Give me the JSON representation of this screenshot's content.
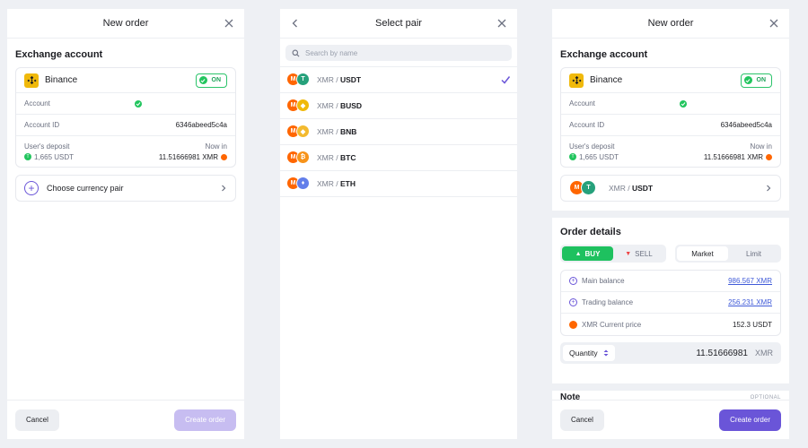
{
  "panel1": {
    "title": "New order",
    "section_title": "Exchange account",
    "account": {
      "exchange_name": "Binance",
      "toggle_label": "ON",
      "account_label": "Account",
      "account_id_label": "Account ID",
      "account_id": "6346abeed5c4a",
      "deposit_label": "User's deposit",
      "deposit_value": "1,665 USDT",
      "now_in_label": "Now in",
      "now_in_value": "11.51666981 XMR"
    },
    "choose_pair_label": "Choose currency pair",
    "footer": {
      "cancel_label": "Cancel",
      "create_label": "Create order"
    }
  },
  "panel2": {
    "title": "Select pair",
    "search_placeholder": "Search by name",
    "pairs": [
      {
        "base": "XMR",
        "sep": " / ",
        "quote": "USDT",
        "selected": true,
        "icon": "tether-icon",
        "color": "#26a17b"
      },
      {
        "base": "XMR",
        "sep": " / ",
        "quote": "BUSD",
        "selected": false,
        "icon": "busd-icon",
        "color": "#f0b90b"
      },
      {
        "base": "XMR",
        "sep": " / ",
        "quote": "BNB",
        "selected": false,
        "icon": "bnb-icon",
        "color": "#f3ba2f"
      },
      {
        "base": "XMR",
        "sep": " / ",
        "quote": "BTC",
        "selected": false,
        "icon": "bitcoin-icon",
        "color": "#f7931a"
      },
      {
        "base": "XMR",
        "sep": " / ",
        "quote": "ETH",
        "selected": false,
        "icon": "ethereum-icon",
        "color": "#627eea"
      }
    ]
  },
  "panel3": {
    "title": "New order",
    "section_title": "Exchange account",
    "account": {
      "exchange_name": "Binance",
      "toggle_label": "ON",
      "account_label": "Account",
      "account_id_label": "Account ID",
      "account_id": "6346abeed5c4a",
      "deposit_label": "User's deposit",
      "deposit_value": "1,665 USDT",
      "now_in_label": "Now in",
      "now_in_value": "11.51666981 XMR"
    },
    "pair": {
      "base": "XMR",
      "sep": " / ",
      "quote": "USDT"
    },
    "order_details_title": "Order details",
    "buy_label": "BUY",
    "sell_label": "SELL",
    "market_label": "Market",
    "limit_label": "Limit",
    "main_balance_label": "Main balance",
    "main_balance_value": "986.567 XMR",
    "trading_balance_label": "Trading balance",
    "trading_balance_value": "256.231 XMR",
    "current_price_label": "XMR Current price",
    "current_price_value": "152.3 USDT",
    "quantity_label": "Quantity",
    "quantity_value": "11.51666981",
    "quantity_unit": "XMR",
    "note_label": "Note",
    "note_optional": "OPTIONAL",
    "footer": {
      "cancel_label": "Cancel",
      "create_label": "Create order"
    }
  },
  "colors": {
    "accent": "#6a55d8",
    "buy": "#1ec15f",
    "sell": "#ef4444",
    "binance": "#f0b90b",
    "monero": "#ff6600"
  }
}
